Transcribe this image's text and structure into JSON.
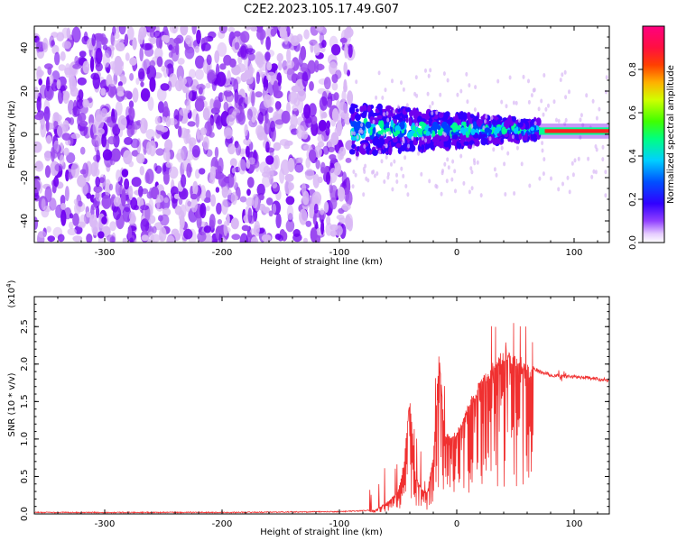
{
  "title": "C2E2.2023.105.17.49.G07",
  "colors": {
    "snr_line": "#f03030",
    "colormap": [
      "#ffffff",
      "#d9b8f5",
      "#9b49f0",
      "#7000f0",
      "#3000ff",
      "#0040ff",
      "#00c8ff",
      "#00ff90",
      "#60ff00",
      "#ffff00",
      "#ff8000",
      "#ff2020",
      "#ff0080"
    ]
  },
  "chart_data": [
    {
      "type": "heatmap",
      "xlabel": "Height of straight line (km)",
      "ylabel": "Frequency (Hz)",
      "xlim": [
        -360,
        130
      ],
      "ylim": [
        -50,
        50
      ],
      "xticks": [
        -300,
        -200,
        -100,
        0,
        100
      ],
      "yticks": [
        -40,
        -20,
        0,
        20,
        40
      ],
      "grid": false,
      "description_regions": [
        {
          "x": [
            -360,
            -90
          ],
          "freq_spread": [
            -50,
            50
          ],
          "amplitude": "low (noise)"
        },
        {
          "x": [
            -90,
            70
          ],
          "freq_center": 2,
          "amplitude": "medium to high"
        },
        {
          "x": [
            70,
            130
          ],
          "freq_center": 1.5,
          "amplitude": "high (~0.85)"
        }
      ],
      "colorbar": {
        "label": "Normalized spectral amplitude",
        "range": [
          0,
          1
        ],
        "ticks": [
          "0.0",
          "0.2",
          "0.4",
          "0.6",
          "0.8"
        ]
      }
    },
    {
      "type": "line",
      "xlabel": "Height of straight line (km)",
      "ylabel": "SNR (10 * v/v)",
      "y_multiplier_label": "(x10",
      "y_multiplier_exp": "4",
      "y_multiplier_close": ")",
      "xlim": [
        -360,
        130
      ],
      "ylim": [
        0,
        2.9
      ],
      "xticks": [
        -300,
        -200,
        -100,
        0,
        100
      ],
      "yticks": [
        "0.0",
        "0.5",
        "1.0",
        "1.5",
        "2.0",
        "2.5"
      ],
      "grid": false,
      "series": [
        {
          "x": [
            -360,
            -200,
            -100,
            -70,
            -60,
            -50,
            -45,
            -40,
            -35,
            -30,
            -25,
            -20,
            -15,
            -10,
            0,
            10,
            20,
            30,
            40,
            50,
            55,
            60,
            65,
            70,
            75,
            80,
            90,
            100,
            110,
            120,
            130
          ],
          "y": [
            0.02,
            0.02,
            0.03,
            0.05,
            0.15,
            0.3,
            0.7,
            1.6,
            0.5,
            0.35,
            0.3,
            0.8,
            2.2,
            1.1,
            1.1,
            1.5,
            1.8,
            2.0,
            2.2,
            2.15,
            2.1,
            2.0,
            1.95,
            1.9,
            1.88,
            1.85,
            1.84,
            1.83,
            1.82,
            1.8,
            1.79
          ]
        }
      ]
    }
  ]
}
